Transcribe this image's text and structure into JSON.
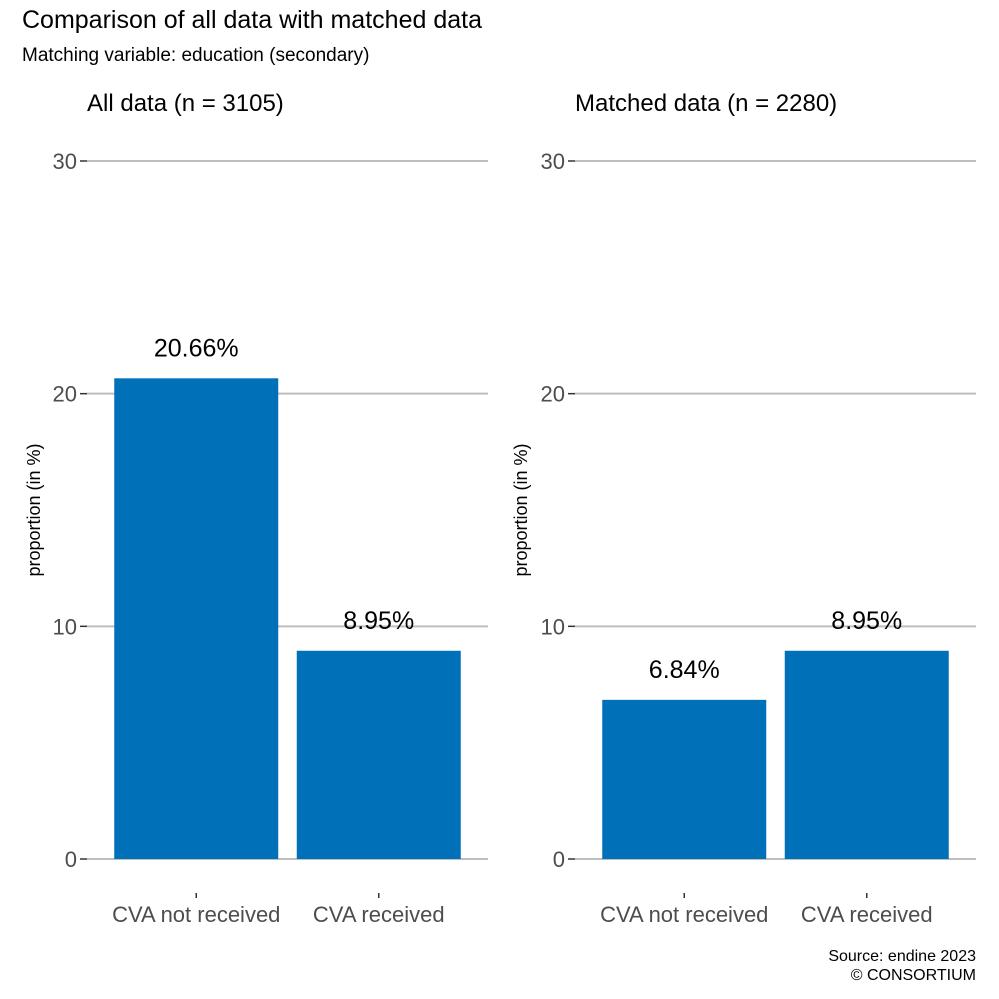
{
  "title": "Comparison of all data with matched data",
  "subtitle": "Matching variable: education (secondary)",
  "caption": {
    "source": "Source: endine 2023",
    "copyright": "© CONSORTIUM"
  },
  "colors": {
    "bar": "#0070b8",
    "gridline": "#bebebe",
    "tick_text": "#4d4d4d",
    "text": "#000000"
  },
  "chart_data": [
    {
      "type": "bar",
      "title": "All data (n = 3105)",
      "ylabel": "proportion (in %)",
      "xlabel": "",
      "categories": [
        "CVA not received",
        "CVA received"
      ],
      "values": [
        20.66,
        8.95
      ],
      "data_labels": [
        "20.66%",
        "8.95%"
      ],
      "ylim": [
        0,
        30
      ],
      "yticks": [
        0,
        10,
        20,
        30
      ],
      "grid": "horizontal major"
    },
    {
      "type": "bar",
      "title": "Matched data (n = 2280)",
      "ylabel": "proportion (in %)",
      "xlabel": "",
      "categories": [
        "CVA not received",
        "CVA received"
      ],
      "values": [
        6.84,
        8.95
      ],
      "data_labels": [
        "6.84%",
        "8.95%"
      ],
      "ylim": [
        0,
        30
      ],
      "yticks": [
        0,
        10,
        20,
        30
      ],
      "grid": "horizontal major"
    }
  ]
}
